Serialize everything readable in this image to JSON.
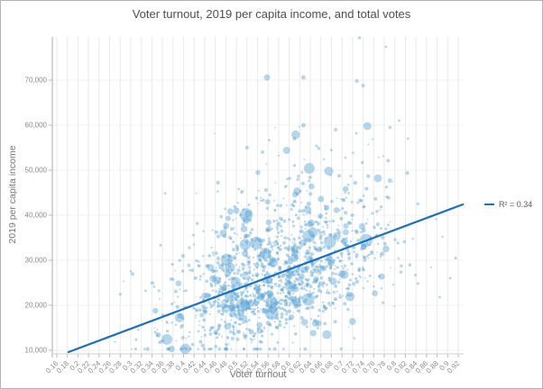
{
  "window": {
    "background": "#ffffff",
    "border_color": "#b3b3b3"
  },
  "chart_data": {
    "type": "scatter",
    "title": "Voter turnout, 2019 per capita income, and total votes",
    "xlabel": "Voter turnout",
    "ylabel": "2019 per capita income",
    "bubble_size_represents": "total votes",
    "grid": true,
    "x_range": [
      0.15,
      0.93
    ],
    "y_range": [
      9200,
      80000
    ],
    "x_ticks": [
      "0.16",
      "0.18",
      "0.2",
      "0.22",
      "0.24",
      "0.26",
      "0.28",
      "0.3",
      "0.32",
      "0.34",
      "0.36",
      "0.38",
      "0.4",
      "0.42",
      "0.44",
      "0.46",
      "0.48",
      "0.5",
      "0.52",
      "0.54",
      "0.56",
      "0.58",
      "0.6",
      "0.62",
      "0.64",
      "0.66",
      "0.68",
      "0.7",
      "0.72",
      "0.74",
      "0.76",
      "0.78",
      "0.8",
      "0.82",
      "0.84",
      "0.86",
      "0.88",
      "0.9",
      "0.92"
    ],
    "y_ticks": [
      "10,000",
      "20,000",
      "30,000",
      "40,000",
      "50,000",
      "60,000",
      "70,000"
    ],
    "legend": {
      "label": "R² = 0.34",
      "position": "right-of-trendline-end"
    },
    "trendline": {
      "x1": 0.182,
      "y1": 9600,
      "x2": 0.929,
      "y2": 42400,
      "r_squared": 0.34,
      "color": "#1f6fb8"
    },
    "point_style": {
      "color": "#5ea4d4",
      "opacity": 0.45
    },
    "notable_points": [
      [
        0.558,
        70600,
        3.5
      ],
      [
        0.627,
        70600,
        2.5
      ],
      [
        0.733,
        79400,
        1.8
      ],
      [
        0.783,
        77400,
        1.4
      ],
      [
        0.627,
        60000,
        2.5
      ],
      [
        0.61,
        57000,
        2.0
      ],
      [
        0.728,
        69800,
        2.0
      ],
      [
        0.74,
        68800,
        2.0
      ],
      [
        0.748,
        59800,
        4.5
      ],
      [
        0.688,
        59000,
        2.0
      ],
      [
        0.808,
        61000,
        1.4
      ],
      [
        0.825,
        57000,
        1.4
      ],
      [
        0.727,
        58200,
        1.4
      ],
      [
        0.675,
        49800,
        5.0
      ],
      [
        0.595,
        54400,
        4.0
      ],
      [
        0.638,
        50400,
        6.0
      ],
      [
        0.52,
        55000,
        2.0
      ],
      [
        0.538,
        33800,
        7.0
      ],
      [
        0.555,
        31500,
        6.0
      ],
      [
        0.57,
        29500,
        5.0
      ],
      [
        0.61,
        30500,
        4.5
      ],
      [
        0.475,
        36000,
        4.0
      ],
      [
        0.5,
        41000,
        3.5
      ],
      [
        0.635,
        41200,
        4.0
      ],
      [
        0.66,
        43600,
        3.5
      ],
      [
        0.885,
        21800,
        1.4
      ],
      [
        0.915,
        30500,
        1.6
      ],
      [
        0.905,
        26000,
        1.4
      ]
    ],
    "cloud": {
      "count": 1400,
      "seed": 7,
      "x_mean": 0.575,
      "x_sd": 0.105,
      "x_min": 0.27,
      "x_max": 0.925,
      "slope": 43000,
      "intercept": 1500,
      "noise_sd": 6800,
      "pos_skew": 1.5,
      "y_min": 10300,
      "y_max": 64000,
      "size": {
        "small_base": 0.8,
        "small_span": 1.3,
        "mid_prob": 0.1,
        "mid_base": 2.0,
        "mid_span": 2.0,
        "big_prob": 0.015,
        "big_base": 4.0,
        "big_span": 3.5
      }
    },
    "axis_colors": {
      "grid_vertical": "#e9e9e9",
      "grid_horizontal": "#f0f0f0",
      "axis_line": "#ababab",
      "baseline": "#d0d0d0",
      "tick_mark": "#b9b9b9",
      "tick_label": "#8a8a8a"
    }
  }
}
